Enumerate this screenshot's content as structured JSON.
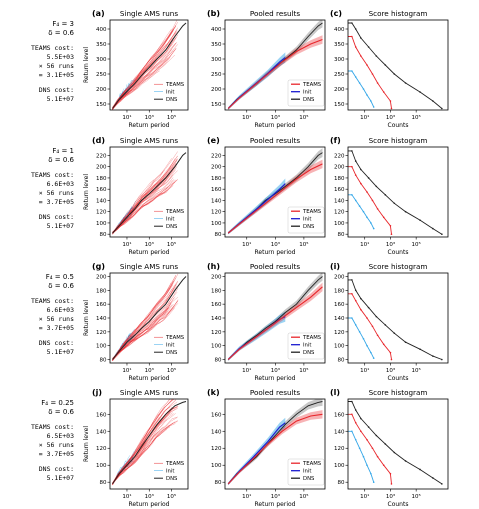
{
  "colors": {
    "teams": "#e8262b",
    "init": "#35a7e8",
    "dns": "#222222",
    "axis": "#000000"
  },
  "x_tick_labels": [
    "10¹",
    "10³",
    "10⁵"
  ],
  "titles": {
    "single": "Single AMS runs",
    "pooled": "Pooled results",
    "hist": "Score histogram"
  },
  "axis_labels": {
    "x": "Return period",
    "y": "Return level",
    "counts": "Counts"
  },
  "legend_labels": [
    "TEAMS",
    "Init",
    "DNS"
  ],
  "rows": [
    {
      "params": [
        "F₄ = 3",
        "δ = 0.6"
      ],
      "costs": [
        "TEAMS cost:",
        "5.5E+03",
        "× 56 runs",
        "= 3.1E+05",
        "DNS cost:",
        "5.1E+07"
      ],
      "letters": [
        "(a)",
        "(b)",
        "(c)"
      ]
    },
    {
      "params": [
        "F₄ = 1",
        "δ = 0.6"
      ],
      "costs": [
        "TEAMS cost:",
        "6.6E+03",
        "× 56 runs",
        "= 3.7E+05",
        "DNS cost:",
        "5.1E+07"
      ],
      "letters": [
        "(d)",
        "(e)",
        "(f)"
      ]
    },
    {
      "params": [
        "F₄ = 0.5",
        "δ = 0.6"
      ],
      "costs": [
        "TEAMS cost:",
        "6.6E+03",
        "× 56 runs",
        "= 3.7E+05",
        "DNS cost:",
        "5.1E+07"
      ],
      "letters": [
        "(g)",
        "(h)",
        "(i)"
      ]
    },
    {
      "params": [
        "F₄ = 0.25",
        "δ = 0.6"
      ],
      "costs": [
        "TEAMS cost:",
        "6.5E+03",
        "× 56 runs",
        "= 3.7E+05",
        "DNS cost:",
        "5.1E+07"
      ],
      "letters": [
        "(j)",
        "(k)",
        "(l)"
      ]
    }
  ],
  "chart_data": [
    {
      "panel": "a",
      "type": "line",
      "xscale": "log",
      "xlim": [
        0.3,
        3000000
      ],
      "ylim": [
        130,
        430
      ],
      "yticks": [
        150,
        200,
        250,
        300,
        350,
        400
      ],
      "series": [
        {
          "name": "DNS",
          "x": [
            0.5,
            2,
            10,
            50,
            200,
            1000,
            5000,
            30000,
            200000,
            1000000,
            2000000
          ],
          "y": [
            135,
            165,
            192,
            218,
            245,
            272,
            300,
            330,
            375,
            410,
            420
          ]
        }
      ]
    },
    {
      "panel": "b",
      "type": "line",
      "xscale": "log",
      "xlim": [
        0.3,
        3000000
      ],
      "ylim": [
        130,
        430
      ],
      "yticks": [
        150,
        200,
        250,
        300,
        350,
        400
      ],
      "series": [
        {
          "name": "TEAMS",
          "x": [
            0.5,
            3,
            30,
            300,
            3000,
            30000,
            300000,
            2000000
          ],
          "y": [
            135,
            170,
            210,
            250,
            290,
            325,
            350,
            365
          ]
        },
        {
          "name": "Init",
          "x": [
            0.5,
            3,
            30,
            300,
            2000,
            5000
          ],
          "y": [
            135,
            172,
            212,
            252,
            290,
            305
          ]
        },
        {
          "name": "DNS",
          "x": [
            0.5,
            2,
            10,
            50,
            200,
            1000,
            5000,
            30000,
            200000,
            1000000,
            2000000
          ],
          "y": [
            135,
            165,
            192,
            218,
            245,
            272,
            300,
            330,
            375,
            410,
            420
          ]
        }
      ]
    },
    {
      "panel": "c",
      "type": "line",
      "xscale": "log",
      "xlim": [
        0.5,
        30000000
      ],
      "ylim": [
        130,
        430
      ],
      "yticks": [
        150,
        200,
        250,
        300,
        350,
        400
      ],
      "series": [
        {
          "name": "DNS",
          "y": [
            420,
            400,
            370,
            340,
            310,
            280,
            250,
            220,
            190,
            160,
            135
          ],
          "x": [
            1,
            2,
            5,
            20,
            80,
            400,
            2000,
            15000,
            200000,
            2000000,
            10000000
          ]
        },
        {
          "name": "TEAMS",
          "y": [
            375,
            340,
            310,
            280,
            250,
            220,
            190,
            160,
            135
          ],
          "x": [
            1,
            2,
            5,
            15,
            40,
            100,
            300,
            1000,
            1200
          ]
        },
        {
          "name": "Init",
          "y": [
            260,
            240,
            220,
            200,
            180,
            160,
            140
          ],
          "x": [
            1,
            2,
            4,
            8,
            15,
            30,
            50
          ]
        }
      ]
    },
    {
      "panel": "d",
      "type": "line",
      "xscale": "log",
      "xlim": [
        0.3,
        3000000
      ],
      "ylim": [
        75,
        235
      ],
      "yticks": [
        80,
        100,
        120,
        140,
        160,
        180,
        200,
        220
      ],
      "series": [
        {
          "name": "DNS",
          "x": [
            0.5,
            2,
            10,
            50,
            200,
            1000,
            5000,
            30000,
            200000,
            1000000,
            2000000
          ],
          "y": [
            82,
            95,
            110,
            125,
            140,
            152,
            165,
            180,
            200,
            220,
            225
          ]
        }
      ]
    },
    {
      "panel": "e",
      "type": "line",
      "xscale": "log",
      "xlim": [
        0.3,
        3000000
      ],
      "ylim": [
        75,
        235
      ],
      "yticks": [
        80,
        100,
        120,
        140,
        160,
        180,
        200,
        220
      ],
      "series": [
        {
          "name": "TEAMS",
          "x": [
            0.5,
            3,
            30,
            300,
            3000,
            30000,
            300000,
            2000000
          ],
          "y": [
            82,
            98,
            118,
            138,
            158,
            178,
            195,
            205
          ]
        },
        {
          "name": "Init",
          "x": [
            0.5,
            3,
            30,
            300,
            2000,
            5000
          ],
          "y": [
            82,
            99,
            120,
            142,
            160,
            170
          ]
        },
        {
          "name": "DNS",
          "x": [
            0.5,
            2,
            10,
            50,
            200,
            1000,
            5000,
            30000,
            200000,
            1000000,
            2000000
          ],
          "y": [
            82,
            95,
            110,
            125,
            140,
            152,
            165,
            180,
            200,
            220,
            225
          ]
        }
      ]
    },
    {
      "panel": "f",
      "type": "line",
      "xscale": "log",
      "xlim": [
        0.5,
        30000000
      ],
      "ylim": [
        75,
        235
      ],
      "yticks": [
        80,
        100,
        120,
        140,
        160,
        180,
        200,
        220
      ],
      "series": [
        {
          "name": "DNS",
          "y": [
            228,
            210,
            195,
            180,
            165,
            150,
            135,
            120,
            105,
            90,
            80
          ],
          "x": [
            1,
            2,
            5,
            20,
            80,
            400,
            2000,
            15000,
            200000,
            2000000,
            10000000
          ]
        },
        {
          "name": "TEAMS",
          "y": [
            200,
            185,
            170,
            155,
            140,
            125,
            110,
            95,
            80
          ],
          "x": [
            1,
            2,
            5,
            15,
            40,
            100,
            300,
            1000,
            1200
          ]
        },
        {
          "name": "Init",
          "y": [
            150,
            140,
            130,
            120,
            110,
            100,
            90
          ],
          "x": [
            1,
            2,
            4,
            8,
            15,
            30,
            50
          ]
        }
      ]
    },
    {
      "panel": "g",
      "type": "line",
      "xscale": "log",
      "xlim": [
        0.3,
        3000000
      ],
      "ylim": [
        75,
        205
      ],
      "yticks": [
        80,
        100,
        120,
        140,
        160,
        180,
        200
      ],
      "series": [
        {
          "name": "DNS",
          "x": [
            0.5,
            2,
            10,
            50,
            200,
            1000,
            5000,
            30000,
            200000,
            1000000,
            2000000
          ],
          "y": [
            80,
            92,
            105,
            115,
            125,
            135,
            148,
            160,
            180,
            195,
            200
          ]
        }
      ]
    },
    {
      "panel": "h",
      "type": "line",
      "xscale": "log",
      "xlim": [
        0.3,
        3000000
      ],
      "ylim": [
        75,
        205
      ],
      "yticks": [
        80,
        100,
        120,
        140,
        160,
        180,
        200
      ],
      "series": [
        {
          "name": "TEAMS",
          "x": [
            0.5,
            3,
            30,
            300,
            3000,
            30000,
            300000,
            2000000
          ],
          "y": [
            80,
            95,
            110,
            125,
            140,
            155,
            170,
            185
          ]
        },
        {
          "name": "Init",
          "x": [
            0.5,
            3,
            30,
            300,
            2000,
            5000
          ],
          "y": [
            80,
            96,
            110,
            125,
            138,
            142
          ]
        },
        {
          "name": "DNS",
          "x": [
            0.5,
            2,
            10,
            50,
            200,
            1000,
            5000,
            30000,
            200000,
            1000000,
            2000000
          ],
          "y": [
            80,
            92,
            105,
            115,
            125,
            135,
            148,
            160,
            180,
            195,
            200
          ]
        }
      ]
    },
    {
      "panel": "i",
      "type": "line",
      "xscale": "log",
      "xlim": [
        0.5,
        30000000
      ],
      "ylim": [
        75,
        205
      ],
      "yticks": [
        80,
        100,
        120,
        140,
        160,
        180,
        200
      ],
      "series": [
        {
          "name": "DNS",
          "y": [
            195,
            180,
            168,
            155,
            142,
            130,
            118,
            105,
            95,
            85,
            80
          ],
          "x": [
            1,
            2,
            5,
            20,
            80,
            400,
            2000,
            15000,
            200000,
            2000000,
            10000000
          ]
        },
        {
          "name": "TEAMS",
          "y": [
            175,
            165,
            152,
            140,
            128,
            115,
            102,
            90,
            80
          ],
          "x": [
            1,
            2,
            5,
            15,
            40,
            100,
            300,
            1000,
            1200
          ]
        },
        {
          "name": "Init",
          "y": [
            140,
            130,
            120,
            110,
            100,
            90,
            82
          ],
          "x": [
            1,
            2,
            4,
            8,
            15,
            30,
            50
          ]
        }
      ]
    },
    {
      "panel": "j",
      "type": "line",
      "xscale": "log",
      "xlim": [
        0.3,
        3000000
      ],
      "ylim": [
        72,
        178
      ],
      "yticks": [
        80,
        100,
        120,
        140,
        160
      ],
      "series": [
        {
          "name": "DNS",
          "x": [
            0.5,
            2,
            10,
            50,
            200,
            1000,
            5000,
            30000,
            200000,
            1000000,
            2000000
          ],
          "y": [
            78,
            90,
            100,
            110,
            122,
            135,
            148,
            160,
            170,
            174,
            175
          ]
        }
      ]
    },
    {
      "panel": "k",
      "type": "line",
      "xscale": "log",
      "xlim": [
        0.3,
        3000000
      ],
      "ylim": [
        72,
        178
      ],
      "yticks": [
        80,
        100,
        120,
        140,
        160
      ],
      "series": [
        {
          "name": "TEAMS",
          "x": [
            0.5,
            3,
            30,
            300,
            3000,
            30000,
            300000,
            2000000
          ],
          "y": [
            78,
            92,
            108,
            125,
            140,
            152,
            158,
            160
          ]
        },
        {
          "name": "Init",
          "x": [
            0.5,
            3,
            30,
            300,
            2000,
            5000
          ],
          "y": [
            78,
            93,
            110,
            128,
            145,
            150
          ]
        },
        {
          "name": "DNS",
          "x": [
            0.5,
            2,
            10,
            50,
            200,
            1000,
            5000,
            30000,
            200000,
            1000000,
            2000000
          ],
          "y": [
            78,
            90,
            100,
            110,
            122,
            135,
            148,
            160,
            170,
            174,
            175
          ]
        }
      ]
    },
    {
      "panel": "l",
      "type": "line",
      "xscale": "log",
      "xlim": [
        0.5,
        30000000
      ],
      "ylim": [
        72,
        178
      ],
      "yticks": [
        80,
        100,
        120,
        140,
        160
      ],
      "series": [
        {
          "name": "DNS",
          "y": [
            175,
            165,
            155,
            145,
            135,
            125,
            115,
            105,
            95,
            85,
            78
          ],
          "x": [
            1,
            2,
            5,
            20,
            80,
            400,
            2000,
            15000,
            200000,
            2000000,
            10000000
          ]
        },
        {
          "name": "TEAMS",
          "y": [
            160,
            150,
            140,
            130,
            120,
            110,
            100,
            90,
            78
          ],
          "x": [
            1,
            2,
            5,
            15,
            40,
            100,
            300,
            1000,
            1200
          ]
        },
        {
          "name": "Init",
          "y": [
            140,
            130,
            120,
            110,
            100,
            90,
            80
          ],
          "x": [
            1,
            2,
            4,
            8,
            15,
            30,
            50
          ]
        }
      ]
    }
  ]
}
